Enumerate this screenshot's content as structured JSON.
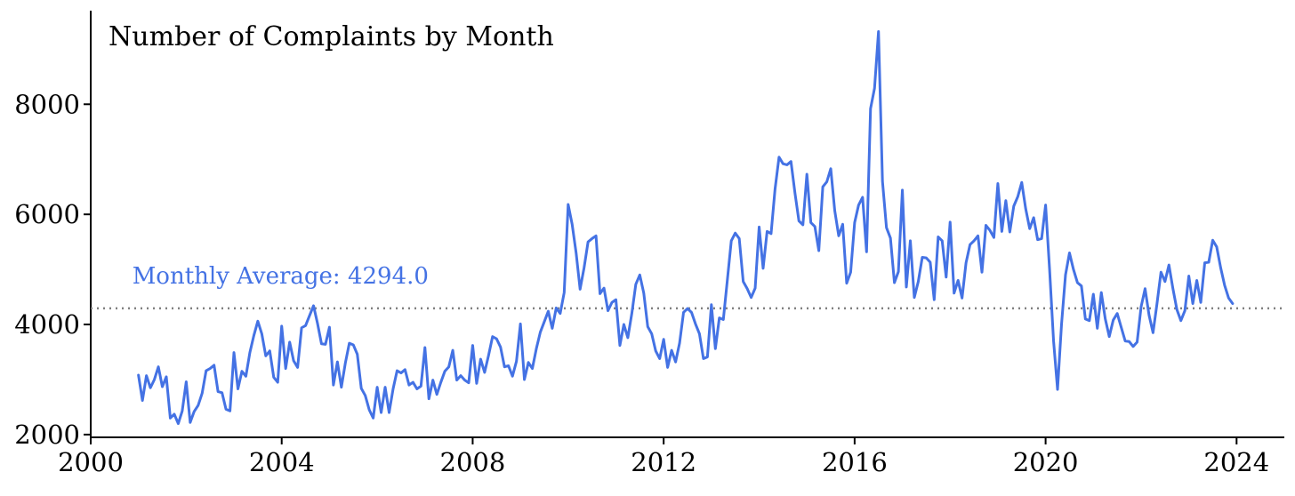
{
  "colors": {
    "series": "#4472e4",
    "average_line": "#808080",
    "average_label": "#4472e4",
    "axis": "#000000",
    "background": "#ffffff"
  },
  "chart_data": {
    "type": "line",
    "title": "Number of Complaints by Month",
    "xlabel": "",
    "ylabel": "",
    "x_ticks": [
      2000,
      2004,
      2008,
      2012,
      2016,
      2020,
      2024
    ],
    "x_tick_labels": [
      "2000",
      "2004",
      "2008",
      "2012",
      "2016",
      "2020",
      "2024"
    ],
    "y_ticks": [
      2000,
      4000,
      6000,
      8000
    ],
    "y_tick_labels": [
      "2000",
      "4000",
      "6000",
      "8000"
    ],
    "xlim": [
      2000,
      2025
    ],
    "ylim": [
      1950,
      9700
    ],
    "grid": false,
    "legend": "none",
    "series": [
      {
        "x": [
          2001.0,
          2001.0833,
          2001.1667,
          2001.25,
          2001.3333,
          2001.4167,
          2001.5,
          2001.5833,
          2001.6667,
          2001.75,
          2001.8333,
          2001.9167,
          2002.0,
          2002.0833,
          2002.1667,
          2002.25,
          2002.3333,
          2002.4167,
          2002.5,
          2002.5833,
          2002.6667,
          2002.75,
          2002.8333,
          2002.9167,
          2003.0,
          2003.0833,
          2003.1667,
          2003.25,
          2003.3333,
          2003.4167,
          2003.5,
          2003.5833,
          2003.6667,
          2003.75,
          2003.8333,
          2003.9167,
          2004.0,
          2004.0833,
          2004.1667,
          2004.25,
          2004.3333,
          2004.4167,
          2004.5,
          2004.5833,
          2004.6667,
          2004.75,
          2004.8333,
          2004.9167,
          2005.0,
          2005.0833,
          2005.1667,
          2005.25,
          2005.3333,
          2005.4167,
          2005.5,
          2005.5833,
          2005.6667,
          2005.75,
          2005.8333,
          2005.9167,
          2006.0,
          2006.0833,
          2006.1667,
          2006.25,
          2006.3333,
          2006.4167,
          2006.5,
          2006.5833,
          2006.6667,
          2006.75,
          2006.8333,
          2006.9167,
          2007.0,
          2007.0833,
          2007.1667,
          2007.25,
          2007.3333,
          2007.4167,
          2007.5,
          2007.5833,
          2007.6667,
          2007.75,
          2007.8333,
          2007.9167,
          2008.0,
          2008.0833,
          2008.1667,
          2008.25,
          2008.3333,
          2008.4167,
          2008.5,
          2008.5833,
          2008.6667,
          2008.75,
          2008.8333,
          2008.9167,
          2009.0,
          2009.0833,
          2009.1667,
          2009.25,
          2009.3333,
          2009.4167,
          2009.5,
          2009.5833,
          2009.6667,
          2009.75,
          2009.8333,
          2009.9167,
          2010.0,
          2010.0833,
          2010.1667,
          2010.25,
          2010.3333,
          2010.4167,
          2010.5,
          2010.5833,
          2010.6667,
          2010.75,
          2010.8333,
          2010.9167,
          2011.0,
          2011.0833,
          2011.1667,
          2011.25,
          2011.3333,
          2011.4167,
          2011.5,
          2011.5833,
          2011.6667,
          2011.75,
          2011.8333,
          2011.9167,
          2012.0,
          2012.0833,
          2012.1667,
          2012.25,
          2012.3333,
          2012.4167,
          2012.5,
          2012.5833,
          2012.6667,
          2012.75,
          2012.8333,
          2012.9167,
          2013.0,
          2013.0833,
          2013.1667,
          2013.25,
          2013.3333,
          2013.4167,
          2013.5,
          2013.5833,
          2013.6667,
          2013.75,
          2013.8333,
          2013.9167,
          2014.0,
          2014.0833,
          2014.1667,
          2014.25,
          2014.3333,
          2014.4167,
          2014.5,
          2014.5833,
          2014.6667,
          2014.75,
          2014.8333,
          2014.9167,
          2015.0,
          2015.0833,
          2015.1667,
          2015.25,
          2015.3333,
          2015.4167,
          2015.5,
          2015.5833,
          2015.6667,
          2015.75,
          2015.8333,
          2015.9167,
          2016.0,
          2016.0833,
          2016.1667,
          2016.25,
          2016.3333,
          2016.4167,
          2016.5,
          2016.5833,
          2016.6667,
          2016.75,
          2016.8333,
          2016.9167,
          2017.0,
          2017.0833,
          2017.1667,
          2017.25,
          2017.3333,
          2017.4167,
          2017.5,
          2017.5833,
          2017.6667,
          2017.75,
          2017.8333,
          2017.9167,
          2018.0,
          2018.0833,
          2018.1667,
          2018.25,
          2018.3333,
          2018.4167,
          2018.5,
          2018.5833,
          2018.6667,
          2018.75,
          2018.8333,
          2018.9167,
          2019.0,
          2019.0833,
          2019.1667,
          2019.25,
          2019.3333,
          2019.4167,
          2019.5,
          2019.5833,
          2019.6667,
          2019.75,
          2019.8333,
          2019.9167,
          2020.0,
          2020.0833,
          2020.1667,
          2020.25,
          2020.3333,
          2020.4167,
          2020.5,
          2020.5833,
          2020.6667,
          2020.75,
          2020.8333,
          2020.9167,
          2021.0,
          2021.0833,
          2021.1667,
          2021.25,
          2021.3333,
          2021.4167,
          2021.5,
          2021.5833,
          2021.6667,
          2021.75,
          2021.8333,
          2021.9167,
          2022.0,
          2022.0833,
          2022.1667,
          2022.25,
          2022.3333,
          2022.4167,
          2022.5,
          2022.5833,
          2022.6667,
          2022.75,
          2022.8333,
          2022.9167,
          2023.0,
          2023.0833,
          2023.1667,
          2023.25,
          2023.3333,
          2023.4167,
          2023.5,
          2023.5833,
          2023.6667,
          2023.75,
          2023.8333,
          2023.9167
        ],
        "values": [
          3080,
          2620,
          3070,
          2850,
          3000,
          3230,
          2870,
          3050,
          2300,
          2370,
          2200,
          2430,
          2960,
          2220,
          2420,
          2530,
          2750,
          3160,
          3200,
          3260,
          2780,
          2760,
          2460,
          2430,
          3490,
          2830,
          3150,
          3060,
          3490,
          3800,
          4060,
          3830,
          3430,
          3520,
          3040,
          2950,
          3970,
          3200,
          3680,
          3340,
          3220,
          3940,
          3980,
          4160,
          4340,
          4020,
          3650,
          3640,
          3950,
          2900,
          3320,
          2860,
          3300,
          3660,
          3630,
          3460,
          2840,
          2710,
          2450,
          2300,
          2860,
          2400,
          2860,
          2400,
          2830,
          3160,
          3120,
          3180,
          2900,
          2950,
          2830,
          2880,
          3580,
          2650,
          2990,
          2730,
          2950,
          3150,
          3230,
          3530,
          2990,
          3070,
          2990,
          2940,
          3620,
          2930,
          3370,
          3130,
          3440,
          3780,
          3740,
          3590,
          3230,
          3250,
          3060,
          3330,
          4010,
          3000,
          3310,
          3200,
          3560,
          3860,
          4050,
          4240,
          3930,
          4300,
          4200,
          4580,
          6180,
          5820,
          5300,
          4640,
          5030,
          5500,
          5560,
          5610,
          4560,
          4660,
          4250,
          4400,
          4450,
          3620,
          4000,
          3760,
          4200,
          4730,
          4900,
          4570,
          3960,
          3830,
          3520,
          3380,
          3730,
          3220,
          3530,
          3320,
          3660,
          4220,
          4290,
          4220,
          4010,
          3830,
          3380,
          3410,
          4360,
          3560,
          4120,
          4090,
          4800,
          5520,
          5660,
          5560,
          4780,
          4650,
          4490,
          4660,
          5770,
          5020,
          5690,
          5650,
          6460,
          7040,
          6920,
          6900,
          6960,
          6390,
          5880,
          5810,
          6730,
          5850,
          5780,
          5340,
          6500,
          6590,
          6830,
          6070,
          5610,
          5820,
          4750,
          4950,
          5850,
          6170,
          6310,
          5320,
          7920,
          8290,
          9320,
          6600,
          5760,
          5570,
          4760,
          4960,
          6440,
          4680,
          5520,
          4490,
          4780,
          5220,
          5210,
          5130,
          4450,
          5590,
          5520,
          4860,
          5860,
          4570,
          4800,
          4480,
          5120,
          5450,
          5520,
          5610,
          4950,
          5800,
          5710,
          5580,
          6560,
          5690,
          6250,
          5680,
          6150,
          6320,
          6580,
          6100,
          5740,
          5940,
          5540,
          5560,
          6170,
          5000,
          3700,
          2820,
          4000,
          4900,
          5300,
          5000,
          4760,
          4700,
          4100,
          4070,
          4550,
          3930,
          4580,
          4100,
          3780,
          4080,
          4200,
          3950,
          3700,
          3690,
          3600,
          3680,
          4320,
          4650,
          4170,
          3850,
          4380,
          4950,
          4780,
          5080,
          4650,
          4270,
          4070,
          4250,
          4880,
          4380,
          4800,
          4400,
          5120,
          5130,
          5530,
          5410,
          5030,
          4710,
          4480,
          4380
        ]
      }
    ],
    "reference_line": {
      "value": 4294.0,
      "label": "Monthly Average: 4294.0"
    }
  }
}
